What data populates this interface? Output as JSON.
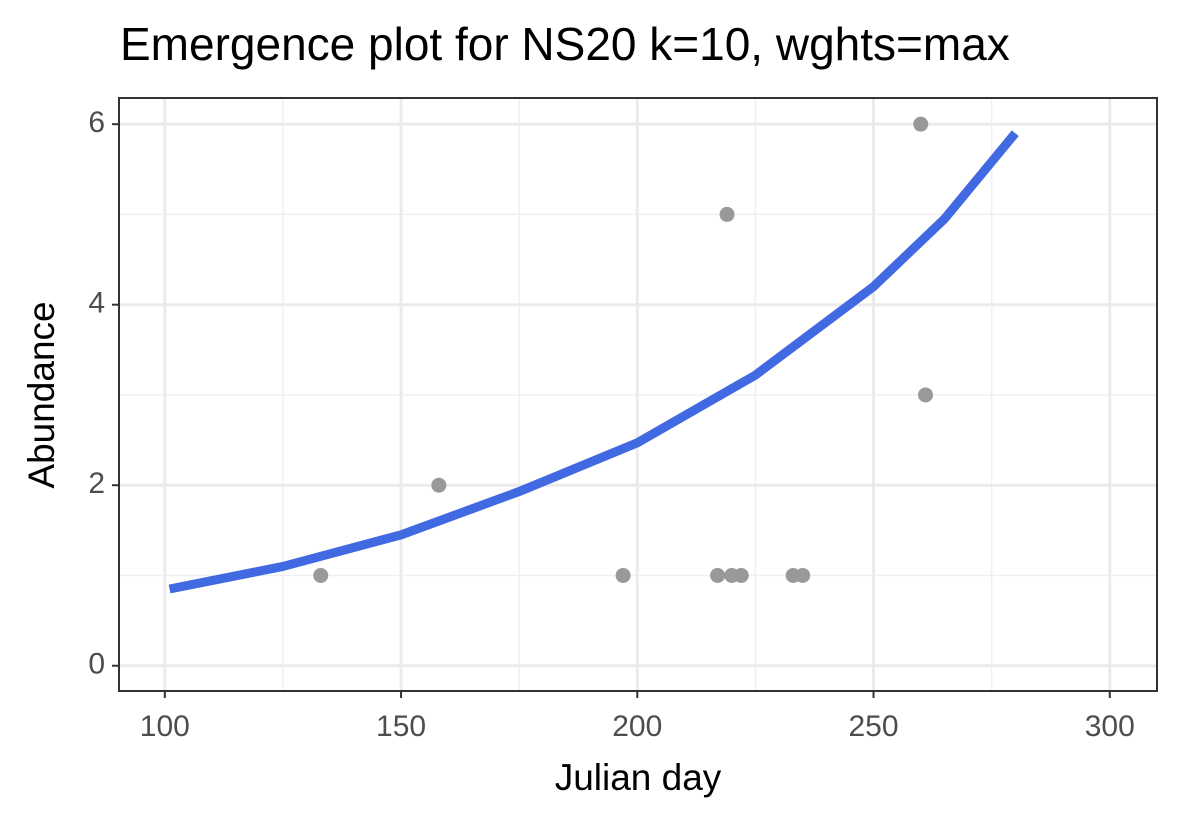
{
  "chart_data": {
    "type": "scatter",
    "title": "Emergence plot for NS20 k=10, wghts=max",
    "x_label": "Julian day",
    "y_label": "Abundance",
    "xlim": [
      90.3,
      310
    ],
    "ylim": [
      -0.28,
      6.29
    ],
    "xticks": [
      100,
      150,
      200,
      250,
      300
    ],
    "yticks": [
      0,
      2,
      4,
      6
    ],
    "x_minor_ticks": [
      125,
      175,
      225,
      275
    ],
    "y_minor_ticks": [
      1,
      3,
      5
    ],
    "grid": true,
    "points": {
      "color": "#999999",
      "x": [
        133,
        158,
        197,
        217,
        219,
        220,
        222,
        233,
        235,
        260,
        261
      ],
      "values": [
        1,
        2,
        1,
        1,
        5,
        1,
        1,
        1,
        1,
        6,
        3
      ]
    },
    "fit": {
      "color": "#4169e1",
      "x": [
        101,
        125,
        150,
        175,
        200,
        225,
        250,
        265,
        280
      ],
      "values": [
        0.85,
        1.1,
        1.45,
        1.93,
        2.47,
        3.22,
        4.2,
        4.95,
        5.9
      ]
    }
  }
}
